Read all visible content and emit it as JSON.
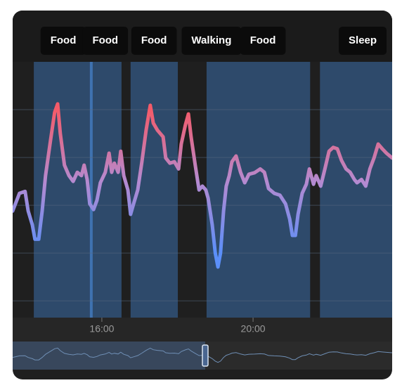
{
  "chart_data": {
    "type": "line",
    "xlim": [
      13.64,
      23.68
    ],
    "xticks": [
      {
        "value": 16,
        "label": "16:00"
      },
      {
        "value": 20,
        "label": "20:00"
      }
    ],
    "ylim": [
      -0.35,
      5
    ],
    "yticks": [
      0,
      1,
      2,
      3,
      4
    ],
    "grid": true,
    "colors": {
      "high": "#f45b69",
      "mid": "#b58ad0",
      "low": "#5b8ff9",
      "band": "#2e4a6b",
      "marker": "#3f72b0"
    },
    "bands": [
      [
        14.2,
        16.52
      ],
      [
        16.76,
        18.01
      ],
      [
        18.77,
        21.51
      ],
      [
        21.77,
        23.68
      ]
    ],
    "marker_x": 15.72,
    "annotations": [
      {
        "label": "Food",
        "x": 14.98
      },
      {
        "label": "Food",
        "x": 16.09
      },
      {
        "label": "Food",
        "x": 17.38
      },
      {
        "label": "Walking",
        "x": 18.9
      },
      {
        "label": "Food",
        "x": 20.26
      },
      {
        "label": "Sleep",
        "x": 22.9
      }
    ],
    "x": [
      13.64,
      13.82,
      13.97,
      14.05,
      14.16,
      14.23,
      14.33,
      14.42,
      14.51,
      14.64,
      14.75,
      14.83,
      14.9,
      15.01,
      15.13,
      15.24,
      15.35,
      15.46,
      15.53,
      15.61,
      15.68,
      15.78,
      15.87,
      15.96,
      16.09,
      16.19,
      16.26,
      16.33,
      16.43,
      16.5,
      16.58,
      16.69,
      16.76,
      16.84,
      16.95,
      17.06,
      17.17,
      17.28,
      17.36,
      17.47,
      17.62,
      17.69,
      17.8,
      17.92,
      18.03,
      18.1,
      18.21,
      18.29,
      18.36,
      18.47,
      18.57,
      18.66,
      18.75,
      18.81,
      18.92,
      19.0,
      19.07,
      19.14,
      19.22,
      19.29,
      19.37,
      19.44,
      19.55,
      19.67,
      19.78,
      19.89,
      20.04,
      20.19,
      20.3,
      20.41,
      20.56,
      20.71,
      20.86,
      20.97,
      21.04,
      21.12,
      21.19,
      21.3,
      21.41,
      21.49,
      21.6,
      21.67,
      21.79,
      21.9,
      22.01,
      22.12,
      22.23,
      22.34,
      22.46,
      22.57,
      22.68,
      22.75,
      22.87,
      22.98,
      23.09,
      23.2,
      23.31,
      23.42,
      23.53,
      23.68
    ],
    "values": [
      1.88,
      2.25,
      2.29,
      1.88,
      1.59,
      1.29,
      1.29,
      1.88,
      2.62,
      3.35,
      3.94,
      4.12,
      3.5,
      2.84,
      2.62,
      2.5,
      2.69,
      2.62,
      2.84,
      2.54,
      2.03,
      1.91,
      2.1,
      2.47,
      2.69,
      3.09,
      2.69,
      2.88,
      2.69,
      3.13,
      2.62,
      2.32,
      1.81,
      2.03,
      2.32,
      2.91,
      3.57,
      4.09,
      3.72,
      3.57,
      3.43,
      2.99,
      2.88,
      2.91,
      2.76,
      3.28,
      3.68,
      3.91,
      3.43,
      2.84,
      2.32,
      2.4,
      2.32,
      2.15,
      1.59,
      1.0,
      0.71,
      1.0,
      1.88,
      2.4,
      2.62,
      2.91,
      3.03,
      2.69,
      2.47,
      2.65,
      2.68,
      2.76,
      2.69,
      2.35,
      2.25,
      2.21,
      2.03,
      1.71,
      1.37,
      1.37,
      1.81,
      2.25,
      2.44,
      2.76,
      2.44,
      2.62,
      2.4,
      2.76,
      3.13,
      3.21,
      3.18,
      2.94,
      2.76,
      2.69,
      2.54,
      2.47,
      2.54,
      2.4,
      2.76,
      2.99,
      3.28,
      3.18,
      3.09,
      2.99
    ]
  }
}
